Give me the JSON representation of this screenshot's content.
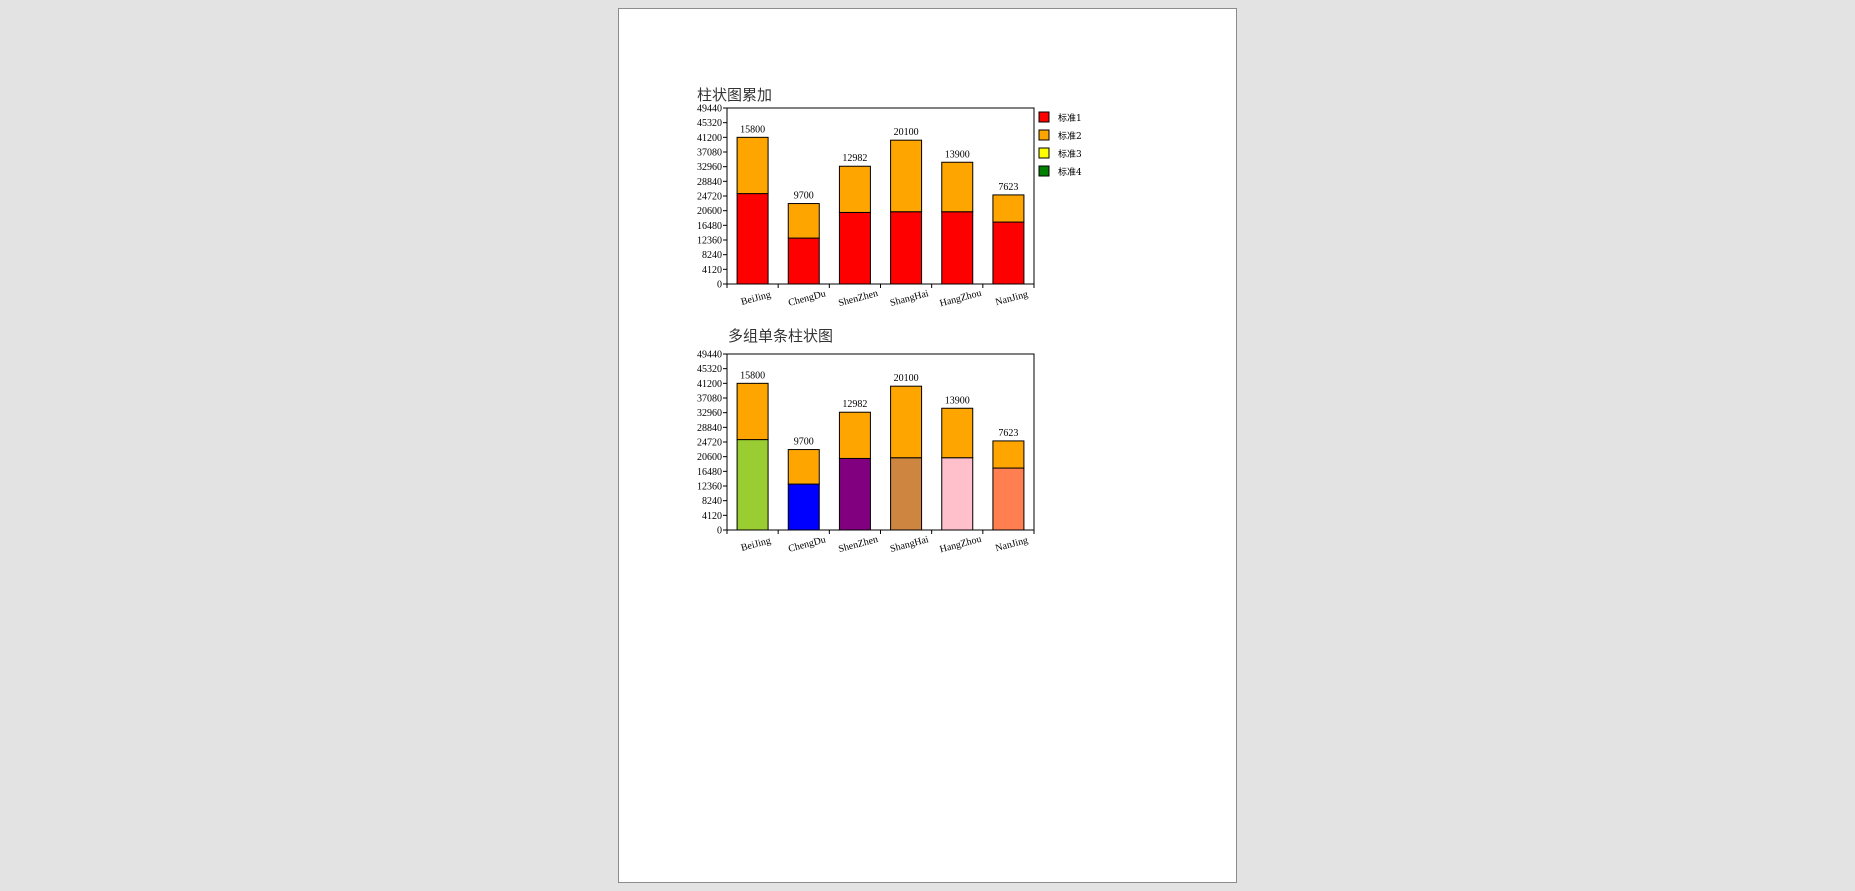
{
  "colors": {
    "background": "#e3e3e3",
    "page": "#ffffff",
    "page_border": "#8c8c8c"
  },
  "chart_data": [
    {
      "type": "bar",
      "stacked": true,
      "title": "柱状图累加",
      "xlabel": "",
      "ylabel": "",
      "ylim": [
        0,
        49440
      ],
      "yticks": [
        0,
        4120,
        8240,
        12360,
        16480,
        20600,
        24720,
        28840,
        32960,
        37080,
        41200,
        45320,
        49440
      ],
      "categories": [
        "BeiJing",
        "ChengDu",
        "ShenZhen",
        "ShangHai",
        "HangZhou",
        "NanJing"
      ],
      "series": [
        {
          "name": "标准1",
          "values": [
            25400,
            12900,
            20100,
            20300,
            20300,
            17400
          ],
          "colors": [
            "#ff0000",
            "#ff0000",
            "#ff0000",
            "#ff0000",
            "#ff0000",
            "#ff0000"
          ]
        },
        {
          "name": "标准2",
          "values": [
            15800,
            9700,
            12982,
            20100,
            13900,
            7623
          ],
          "colors": [
            "#ffa500",
            "#ffa500",
            "#ffa500",
            "#ffa500",
            "#ffa500",
            "#ffa500"
          ]
        }
      ],
      "legend": {
        "position": "right",
        "entries": [
          {
            "label": "标准1",
            "color": "#ff0000"
          },
          {
            "label": "标准2",
            "color": "#ffa500"
          },
          {
            "label": "标准3",
            "color": "#ffff00"
          },
          {
            "label": "标准4",
            "color": "#008000"
          }
        ]
      },
      "grid": false
    },
    {
      "type": "bar",
      "stacked": true,
      "title": "多组单条柱状图",
      "xlabel": "",
      "ylabel": "",
      "ylim": [
        0,
        49440
      ],
      "yticks": [
        0,
        4120,
        8240,
        12360,
        16480,
        20600,
        24720,
        28840,
        32960,
        37080,
        41200,
        45320,
        49440
      ],
      "categories": [
        "BeiJing",
        "ChengDu",
        "ShenZhen",
        "ShangHai",
        "HangZhou",
        "NanJing"
      ],
      "series": [
        {
          "values": [
            25400,
            12900,
            20100,
            20300,
            20300,
            17400
          ],
          "colors": [
            "#9acd32",
            "#0000ff",
            "#800080",
            "#cd853f",
            "#ffc0cb",
            "#ff7f50"
          ]
        },
        {
          "values": [
            15800,
            9700,
            12982,
            20100,
            13900,
            7623
          ],
          "colors": [
            "#ffa500",
            "#ffa500",
            "#ffa500",
            "#ffa500",
            "#ffa500",
            "#ffa500"
          ]
        }
      ],
      "legend": null,
      "grid": false
    }
  ]
}
